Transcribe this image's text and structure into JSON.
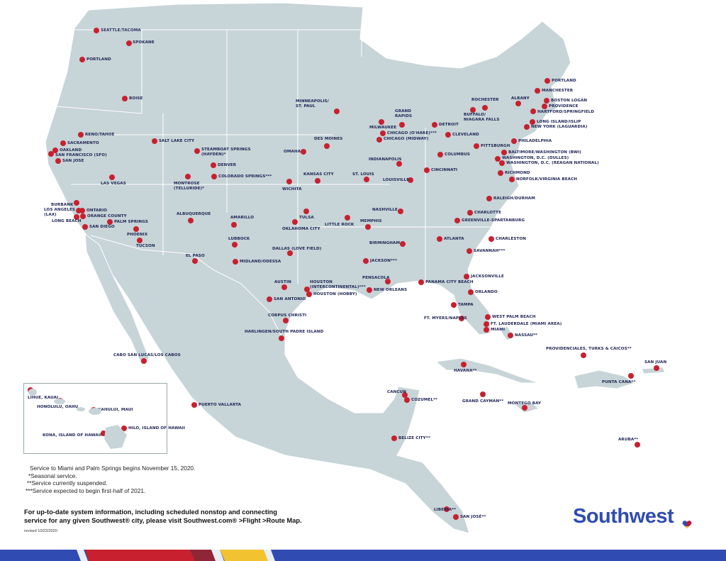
{
  "map": {
    "land_color": "#c7d4d8",
    "dot_color": "#c8202f",
    "label_color": "#1d2453",
    "cities": [
      "SEATTLE/TACOMA",
      "SPOKANE",
      "PORTLAND",
      "BOISE",
      "RENO/TAHOE",
      "SACRAMENTO",
      "OAKLAND",
      "SAN FRANCISCO (SFO)",
      "SAN JOSE",
      "SALT LAKE CITY",
      "STEAMBOAT SPRINGS\n(HAYDEN)*",
      "DENVER",
      "MONTROSE\n(TELLURIDE)*",
      "COLORADO SPRINGS***",
      "LAS VEGAS",
      "BURBANK",
      "LOS ANGELES\n(LAX)",
      "ONTARIO",
      "ORANGE COUNTY",
      "LONG BEACH",
      "PALM SPRINGS",
      "SAN DIEGO",
      "PHOENIX",
      "TUCSON",
      "ALBUQUERQUE",
      "AMARILLO",
      "LUBBOCK",
      "EL PASO",
      "MIDLAND/ODESSA",
      "DALLAS (LOVE FIELD)",
      "OKLAHOMA CITY",
      "TULSA",
      "WICHITA",
      "KANSAS CITY",
      "OMAHA",
      "DES MOINES",
      "MINNEAPOLIS/\nST. PAUL",
      "ST. LOUIS",
      "LITTLE ROCK",
      "MEMPHIS",
      "NASHVILLE",
      "LOUISVILLE",
      "INDIANAPOLIS",
      "CHICAGO (O'HARE)***",
      "CHICAGO (MIDWAY)",
      "MILWAUKEE",
      "GRAND\nRAPIDS",
      "DETROIT",
      "CLEVELAND",
      "COLUMBUS",
      "CINCINNATI",
      "PITTSBURGH",
      "ROCHESTER",
      "BUFFALO/\nNIAGARA FALLS",
      "ALBANY",
      "PORTLAND",
      "MANCHESTER",
      "BOSTON LOGAN",
      "PROVIDENCE",
      "HARTFORD/SPRINGFIELD",
      "LONG ISLAND/ISLIP",
      "NEW YORK (LAGUARDIA)",
      "PHILADELPHIA",
      "BALTIMORE/WASHINGTON (BWI)",
      "WASHINGTON, D.C. (DULLES)",
      "WASHINGTON, D.C. (REAGAN NATIONAL)",
      "RICHMOND",
      "NORFOLK/VIRGINIA BEACH",
      "RALEIGH/DURHAM",
      "CHARLOTTE",
      "GREENVILLE-SPARTANBURG",
      "ATLANTA",
      "CHARLESTON",
      "SAVANNAH***",
      "BIRMINGHAM",
      "JACKSON***",
      "JACKSONVILLE",
      "PENSACOLA",
      "PANAMA CITY BEACH",
      "NEW ORLEANS",
      "ORLANDO",
      "TAMPA",
      "FT. MYERS/NAPLES",
      "WEST PALM BEACH",
      "FT. LAUDERDALE (MIAMI AREA)",
      "MIAMI",
      "NASSAU**",
      "HOUSTON\n(INTERCONTINENTAL)***",
      "HOUSTON (HOBBY)",
      "AUSTIN",
      "SAN ANTONIO",
      "CORPUS CHRISTI",
      "HARLINGEN/SOUTH PADRE ISLAND",
      "CABO SAN LUCAS/LOS CABOS",
      "PUERTO VALLARTA",
      "CANCUN",
      "COZUMEL**",
      "HAVANA**",
      "GRAND CAYMAN**",
      "MONTEGO BAY",
      "PROVIDENCIALES, TURKS & CAICOS**",
      "SAN JUAN",
      "PUNTA CANA**",
      "BELIZE CITY**",
      "ARUBA**",
      "LIBERIA**",
      "SAN JOSÉ**"
    ],
    "hawaii": [
      "LIHUE, KAUAI",
      "HONOLULU, OAHU",
      "KAHULUI, MAUI",
      "KONA, ISLAND OF HAWAII",
      "HILO, ISLAND OF HAWAII"
    ]
  },
  "notes": [
    "Service to Miami and Palm Springs begins November 15, 2020.",
    "*Seasonal service.",
    "**Service currently suspended.",
    "***Service expected to begin first-half of 2021."
  ],
  "info": {
    "line1": "For up-to-date system information, including scheduled nonstop and connecting",
    "line2": "service for any given Southwest® city, please visit Southwest.com® >Flight >Route Map."
  },
  "revised": "revised 10/22/2020",
  "brand": {
    "name": "Southwest",
    "colors": {
      "blue": "#304cb2",
      "red": "#c8102e",
      "yellow": "#ffbf27"
    }
  }
}
